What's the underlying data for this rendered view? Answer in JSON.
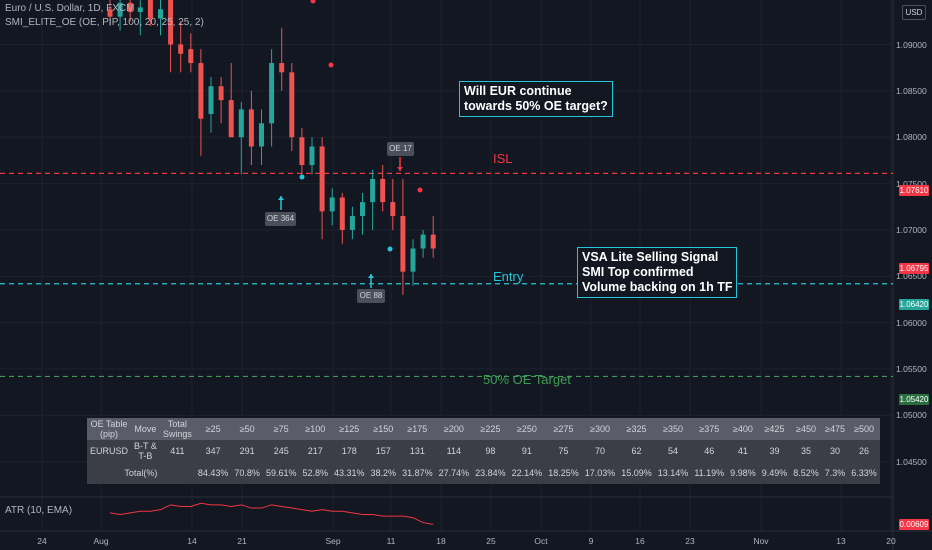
{
  "header": {
    "symbol_line": "Euro / U.S. Dollar, 1D, FXCM",
    "indicator_line": "SMI_ELITE_OE (OE, PIP, 100, 20, 25, 25, 2)",
    "currency_button": "USD"
  },
  "price_tags": {
    "isl": {
      "label": "1.07610",
      "color": "#f23645"
    },
    "last": {
      "label": "1.06795",
      "color": "#f23645"
    },
    "entry": {
      "label": "1.06420",
      "color": "#26a69a"
    },
    "target": {
      "label": "1.05420",
      "color": "#2a6e3f"
    }
  },
  "atr": {
    "legend": "ATR (10, EMA)",
    "value_label": "0.00609",
    "color": "#f23645"
  },
  "labels": {
    "oe_364": "OE 364",
    "oe_17": "OE 17",
    "oe_88": "OE 88",
    "isl_text": "ISL",
    "entry_text": "Entry",
    "target_text": "50% OE Target"
  },
  "annotations": {
    "question": "Will EUR continue\ntowards 50% OE target?",
    "signal": "VSA Lite Selling Signal\nSMI Top confirmed\nVolume backing on 1h TF"
  },
  "oe_table": {
    "header_cells": [
      "OE Table\n(pip)",
      "Move",
      "Total\nSwings"
    ],
    "thresholds": [
      "≥25",
      "≥50",
      "≥75",
      "≥100",
      "≥125",
      "≥150",
      "≥175",
      "≥200",
      "≥225",
      "≥250",
      "≥275",
      "≥300",
      "≥325",
      "≥350",
      "≥375",
      "≥400",
      "≥425",
      "≥450",
      "≥475",
      "≥500"
    ],
    "row": {
      "pair": "EURUSD",
      "move": "B-T &\nT-B",
      "total": "411",
      "counts": [
        "347",
        "291",
        "245",
        "217",
        "178",
        "157",
        "131",
        "114",
        "98",
        "91",
        "75",
        "70",
        "62",
        "54",
        "46",
        "41",
        "39",
        "35",
        "30",
        "26"
      ]
    },
    "total_row": {
      "label": "Total(%)",
      "percents": [
        "84.43%",
        "70.8%",
        "59.61%",
        "52.8%",
        "43.31%",
        "38.2%",
        "31.87%",
        "27.74%",
        "23.84%",
        "22.14%",
        "18.25%",
        "17.03%",
        "15.09%",
        "13.14%",
        "11.19%",
        "9.98%",
        "9.49%",
        "8.52%",
        "7.3%",
        "6.33%"
      ]
    }
  },
  "chart_data": {
    "type": "candlestick",
    "symbol": "Euro / U.S. Dollar, 1D, FXCM",
    "y_ticks": [
      "1.09000",
      "1.08500",
      "1.08000",
      "1.07500",
      "1.07000",
      "1.06500",
      "1.06000",
      "1.05500",
      "1.05000",
      "1.04500"
    ],
    "y_tick_values": [
      1.09,
      1.085,
      1.08,
      1.075,
      1.07,
      1.065,
      1.06,
      1.055,
      1.05,
      1.045
    ],
    "ylim": [
      1.0412,
      1.0948
    ],
    "x_ticks": [
      "24",
      "Aug",
      "14",
      "21",
      "Sep",
      "11",
      "18",
      "25",
      "Oct",
      "9",
      "16",
      "23",
      "Nov",
      "13",
      "20"
    ],
    "candles": [
      {
        "o": 1.0938,
        "h": 1.0948,
        "l": 1.092,
        "c": 1.093
      },
      {
        "o": 1.093,
        "h": 1.0948,
        "l": 1.0915,
        "c": 1.0945
      },
      {
        "o": 1.0945,
        "h": 1.0948,
        "l": 1.0925,
        "c": 1.0935
      },
      {
        "o": 1.0935,
        "h": 1.0948,
        "l": 1.091,
        "c": 1.094
      },
      {
        "o": 1.0948,
        "h": 1.0948,
        "l": 1.092,
        "c": 1.0928
      },
      {
        "o": 1.0928,
        "h": 1.0948,
        "l": 1.091,
        "c": 1.0938
      },
      {
        "o": 1.0948,
        "h": 1.0948,
        "l": 1.087,
        "c": 1.09
      },
      {
        "o": 1.09,
        "h": 1.0925,
        "l": 1.087,
        "c": 1.089
      },
      {
        "o": 1.0895,
        "h": 1.0912,
        "l": 1.087,
        "c": 1.088
      },
      {
        "o": 1.088,
        "h": 1.0895,
        "l": 1.078,
        "c": 1.082
      },
      {
        "o": 1.0825,
        "h": 1.0865,
        "l": 1.0805,
        "c": 1.0855
      },
      {
        "o": 1.0855,
        "h": 1.0865,
        "l": 1.0815,
        "c": 1.084
      },
      {
        "o": 1.084,
        "h": 1.088,
        "l": 1.08,
        "c": 1.08
      },
      {
        "o": 1.08,
        "h": 1.0838,
        "l": 1.076,
        "c": 1.083
      },
      {
        "o": 1.083,
        "h": 1.085,
        "l": 1.077,
        "c": 1.079
      },
      {
        "o": 1.079,
        "h": 1.083,
        "l": 1.077,
        "c": 1.0815
      },
      {
        "o": 1.0815,
        "h": 1.0895,
        "l": 1.079,
        "c": 1.088
      },
      {
        "o": 1.088,
        "h": 1.0918,
        "l": 1.085,
        "c": 1.087
      },
      {
        "o": 1.087,
        "h": 1.088,
        "l": 1.0785,
        "c": 1.08
      },
      {
        "o": 1.08,
        "h": 1.081,
        "l": 1.076,
        "c": 1.077
      },
      {
        "o": 1.077,
        "h": 1.08,
        "l": 1.076,
        "c": 1.079
      },
      {
        "o": 1.079,
        "h": 1.08,
        "l": 1.069,
        "c": 1.072
      },
      {
        "o": 1.072,
        "h": 1.0745,
        "l": 1.0705,
        "c": 1.0735
      },
      {
        "o": 1.0735,
        "h": 1.074,
        "l": 1.0685,
        "c": 1.07
      },
      {
        "o": 1.07,
        "h": 1.0725,
        "l": 1.069,
        "c": 1.0715
      },
      {
        "o": 1.0715,
        "h": 1.074,
        "l": 1.0695,
        "c": 1.073
      },
      {
        "o": 1.073,
        "h": 1.0765,
        "l": 1.07,
        "c": 1.0755
      },
      {
        "o": 1.0755,
        "h": 1.077,
        "l": 1.072,
        "c": 1.073
      },
      {
        "o": 1.073,
        "h": 1.0755,
        "l": 1.07,
        "c": 1.0715
      },
      {
        "o": 1.0715,
        "h": 1.0755,
        "l": 1.063,
        "c": 1.0655
      },
      {
        "o": 1.0655,
        "h": 1.069,
        "l": 1.064,
        "c": 1.068
      },
      {
        "o": 1.068,
        "h": 1.07,
        "l": 1.067,
        "c": 1.0695
      },
      {
        "o": 1.0695,
        "h": 1.0715,
        "l": 1.067,
        "c": 1.068
      }
    ],
    "horizontal_lines": [
      {
        "name": "ISL",
        "value": 1.0761,
        "color": "#f23645"
      },
      {
        "name": "Entry",
        "value": 1.0642,
        "color": "#26c6da"
      },
      {
        "name": "50% OE Target",
        "value": 1.0542,
        "color": "#3f9c55"
      }
    ],
    "atr_series": [
      0.0068,
      0.0067,
      0.0068,
      0.0069,
      0.0069,
      0.007,
      0.0073,
      0.0072,
      0.0072,
      0.0074,
      0.0073,
      0.0073,
      0.0072,
      0.0073,
      0.0071,
      0.0071,
      0.0073,
      0.0072,
      0.0071,
      0.007,
      0.0069,
      0.007,
      0.0069,
      0.0069,
      0.0068,
      0.0067,
      0.0067,
      0.0066,
      0.0066,
      0.0066,
      0.0065,
      0.0062,
      0.00609
    ],
    "colors": {
      "up": "#26a69a",
      "down": "#ef5350"
    }
  }
}
